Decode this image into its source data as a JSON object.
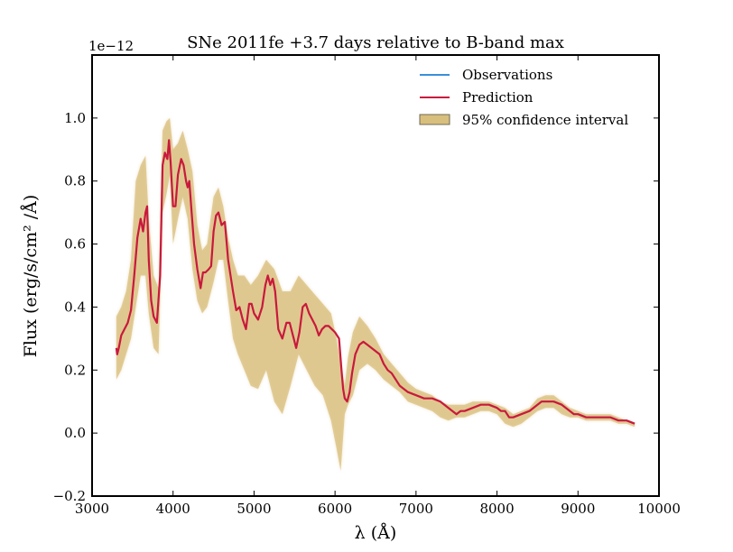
{
  "chart_data": {
    "type": "line",
    "title": "SNe 2011fe +3.7 days relative to B-band max",
    "xlabel": "λ (Å)",
    "ylabel": "Flux (erg/s/cm² /Å)",
    "y_offset_label": "1e−12",
    "xlim": [
      3000,
      10000
    ],
    "ylim": [
      -0.2,
      1.2
    ],
    "xticks": [
      3000,
      4000,
      5000,
      6000,
      7000,
      8000,
      9000,
      10000
    ],
    "xtick_labels": [
      "3000",
      "4000",
      "5000",
      "6000",
      "7000",
      "8000",
      "9000",
      "10000"
    ],
    "yticks": [
      -0.2,
      0.0,
      0.2,
      0.4,
      0.6,
      0.8,
      1.0
    ],
    "ytick_labels": [
      "−0.2",
      "0.0",
      "0.2",
      "0.4",
      "0.6",
      "0.8",
      "1.0"
    ],
    "grid": false,
    "legend_position": "top-right",
    "legend": [
      {
        "label": "Observations",
        "kind": "line",
        "color": "#3a8fd8"
      },
      {
        "label": "Prediction",
        "kind": "line",
        "color": "#c8193c"
      },
      {
        "label": "95% confidence interval",
        "kind": "band",
        "color": "#d9bf7d"
      }
    ],
    "series": [
      {
        "name": "Prediction",
        "color": "#c8193c",
        "x": [
          3300,
          3310,
          3330,
          3360,
          3400,
          3440,
          3480,
          3520,
          3560,
          3600,
          3630,
          3660,
          3680,
          3700,
          3730,
          3760,
          3800,
          3840,
          3870,
          3900,
          3930,
          3950,
          3970,
          4000,
          4030,
          4060,
          4100,
          4130,
          4160,
          4180,
          4200,
          4230,
          4260,
          4300,
          4340,
          4370,
          4400,
          4440,
          4470,
          4500,
          4530,
          4560,
          4600,
          4640,
          4680,
          4710,
          4740,
          4780,
          4820,
          4860,
          4900,
          4940,
          4970,
          5000,
          5050,
          5100,
          5140,
          5170,
          5200,
          5230,
          5260,
          5300,
          5350,
          5400,
          5440,
          5480,
          5520,
          5560,
          5600,
          5640,
          5680,
          5720,
          5760,
          5800,
          5840,
          5880,
          5920,
          5960,
          6000,
          6050,
          6080,
          6100,
          6120,
          6150,
          6180,
          6210,
          6250,
          6300,
          6350,
          6400,
          6450,
          6500,
          6550,
          6600,
          6650,
          6700,
          6750,
          6800,
          6900,
          7000,
          7100,
          7200,
          7300,
          7400,
          7450,
          7500,
          7550,
          7600,
          7700,
          7800,
          7900,
          8000,
          8050,
          8100,
          8150,
          8200,
          8300,
          8400,
          8500,
          8550,
          8600,
          8700,
          8800,
          8900,
          8950,
          9000,
          9100,
          9200,
          9300,
          9400,
          9500,
          9600,
          9700
        ],
        "y": [
          0.27,
          0.25,
          0.27,
          0.31,
          0.33,
          0.35,
          0.39,
          0.5,
          0.62,
          0.68,
          0.64,
          0.7,
          0.72,
          0.55,
          0.42,
          0.37,
          0.35,
          0.5,
          0.85,
          0.89,
          0.87,
          0.93,
          0.86,
          0.72,
          0.72,
          0.82,
          0.87,
          0.85,
          0.8,
          0.78,
          0.8,
          0.7,
          0.6,
          0.52,
          0.46,
          0.51,
          0.51,
          0.52,
          0.53,
          0.64,
          0.69,
          0.7,
          0.66,
          0.67,
          0.55,
          0.5,
          0.45,
          0.39,
          0.4,
          0.36,
          0.33,
          0.41,
          0.41,
          0.38,
          0.36,
          0.4,
          0.47,
          0.5,
          0.47,
          0.49,
          0.45,
          0.33,
          0.3,
          0.35,
          0.35,
          0.31,
          0.27,
          0.32,
          0.4,
          0.41,
          0.38,
          0.36,
          0.34,
          0.31,
          0.33,
          0.34,
          0.34,
          0.33,
          0.32,
          0.3,
          0.2,
          0.14,
          0.11,
          0.1,
          0.13,
          0.19,
          0.25,
          0.28,
          0.29,
          0.28,
          0.27,
          0.26,
          0.25,
          0.22,
          0.2,
          0.19,
          0.17,
          0.15,
          0.13,
          0.12,
          0.11,
          0.11,
          0.1,
          0.08,
          0.07,
          0.06,
          0.07,
          0.07,
          0.08,
          0.09,
          0.09,
          0.08,
          0.07,
          0.07,
          0.05,
          0.05,
          0.06,
          0.07,
          0.09,
          0.1,
          0.1,
          0.1,
          0.09,
          0.07,
          0.06,
          0.06,
          0.05,
          0.05,
          0.05,
          0.05,
          0.04,
          0.04,
          0.03
        ]
      }
    ],
    "confidence_interval": {
      "name": "95% confidence interval",
      "color": "#d9bf7d",
      "x": [
        3300,
        3360,
        3420,
        3480,
        3540,
        3600,
        3660,
        3700,
        3760,
        3820,
        3870,
        3920,
        3960,
        4000,
        4060,
        4120,
        4180,
        4240,
        4300,
        4360,
        4420,
        4500,
        4560,
        4620,
        4680,
        4740,
        4800,
        4880,
        4960,
        5050,
        5150,
        5250,
        5350,
        5450,
        5550,
        5650,
        5750,
        5850,
        5950,
        6020,
        6070,
        6120,
        6160,
        6220,
        6300,
        6400,
        6500,
        6600,
        6700,
        6800,
        6900,
        7000,
        7100,
        7200,
        7300,
        7400,
        7500,
        7600,
        7700,
        7800,
        7900,
        8000,
        8100,
        8200,
        8300,
        8400,
        8500,
        8600,
        8700,
        8800,
        8900,
        9000,
        9100,
        9200,
        9300,
        9400,
        9500,
        9600,
        9700
      ],
      "upper": [
        0.37,
        0.4,
        0.45,
        0.55,
        0.8,
        0.85,
        0.88,
        0.68,
        0.5,
        0.46,
        0.96,
        0.99,
        1.0,
        0.9,
        0.92,
        0.96,
        0.9,
        0.83,
        0.66,
        0.58,
        0.6,
        0.75,
        0.78,
        0.72,
        0.62,
        0.55,
        0.5,
        0.5,
        0.47,
        0.5,
        0.55,
        0.52,
        0.45,
        0.45,
        0.5,
        0.47,
        0.44,
        0.41,
        0.38,
        0.3,
        0.22,
        0.15,
        0.24,
        0.32,
        0.37,
        0.34,
        0.3,
        0.25,
        0.22,
        0.19,
        0.16,
        0.14,
        0.13,
        0.12,
        0.1,
        0.09,
        0.09,
        0.09,
        0.1,
        0.1,
        0.1,
        0.09,
        0.08,
        0.06,
        0.07,
        0.08,
        0.11,
        0.12,
        0.12,
        0.1,
        0.08,
        0.07,
        0.06,
        0.06,
        0.06,
        0.06,
        0.05,
        0.04,
        0.03
      ],
      "lower": [
        0.17,
        0.2,
        0.25,
        0.3,
        0.4,
        0.5,
        0.5,
        0.38,
        0.27,
        0.25,
        0.7,
        0.76,
        0.82,
        0.6,
        0.68,
        0.75,
        0.68,
        0.52,
        0.42,
        0.38,
        0.4,
        0.48,
        0.55,
        0.55,
        0.42,
        0.3,
        0.25,
        0.2,
        0.15,
        0.14,
        0.2,
        0.1,
        0.06,
        0.15,
        0.25,
        0.2,
        0.15,
        0.12,
        0.04,
        -0.05,
        -0.12,
        0.06,
        0.09,
        0.12,
        0.2,
        0.22,
        0.2,
        0.17,
        0.15,
        0.13,
        0.1,
        0.09,
        0.08,
        0.07,
        0.05,
        0.04,
        0.05,
        0.05,
        0.06,
        0.07,
        0.07,
        0.06,
        0.03,
        0.02,
        0.03,
        0.05,
        0.07,
        0.08,
        0.08,
        0.06,
        0.05,
        0.05,
        0.04,
        0.04,
        0.04,
        0.04,
        0.03,
        0.03,
        0.02
      ]
    }
  }
}
